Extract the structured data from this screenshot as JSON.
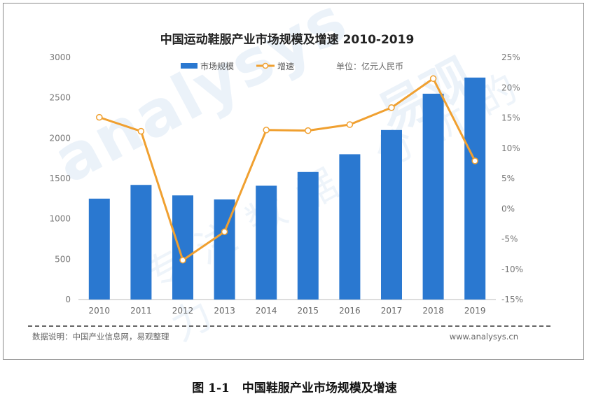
{
  "chart_data": {
    "type": "bar+line",
    "title": "中国运动鞋服产业市场规模及增速 2010-2019",
    "unit_note": "单位：亿元人民币",
    "categories": [
      "2010",
      "2011",
      "2012",
      "2013",
      "2014",
      "2015",
      "2016",
      "2017",
      "2018",
      "2019"
    ],
    "series": [
      {
        "name": "市场规模",
        "type": "bar",
        "axis": "left",
        "color": "#2a78d0",
        "values": [
          1250,
          1420,
          1290,
          1240,
          1410,
          1580,
          1800,
          2100,
          2550,
          2750
        ]
      },
      {
        "name": "增速",
        "type": "line",
        "axis": "right",
        "color": "#f0a030",
        "unit": "%",
        "values": [
          15.1,
          12.8,
          -8.5,
          -3.8,
          13.0,
          12.9,
          13.9,
          16.7,
          21.5,
          7.9
        ]
      }
    ],
    "left_axis": {
      "min": 0,
      "max": 3000,
      "ticks": [
        "0",
        "500",
        "1000",
        "1500",
        "2000",
        "2500",
        "3000"
      ]
    },
    "right_axis": {
      "min": -15,
      "max": 25,
      "ticks": [
        "-15%",
        "-10%",
        "-5%",
        "0%",
        "5%",
        "10%",
        "15%",
        "20%",
        "25%"
      ]
    },
    "legend": [
      "市场规模",
      "增速"
    ]
  },
  "footer": {
    "note": "数据说明：中国产业信息网，易观整理",
    "url": "www.analysys.cn"
  },
  "watermark": {
    "brand": "易观",
    "text": "analysys",
    "slogan": "专注数据 分析的力"
  },
  "caption": {
    "figure_label": "图 1-1",
    "text": "中国鞋服产业市场规模及增速"
  }
}
